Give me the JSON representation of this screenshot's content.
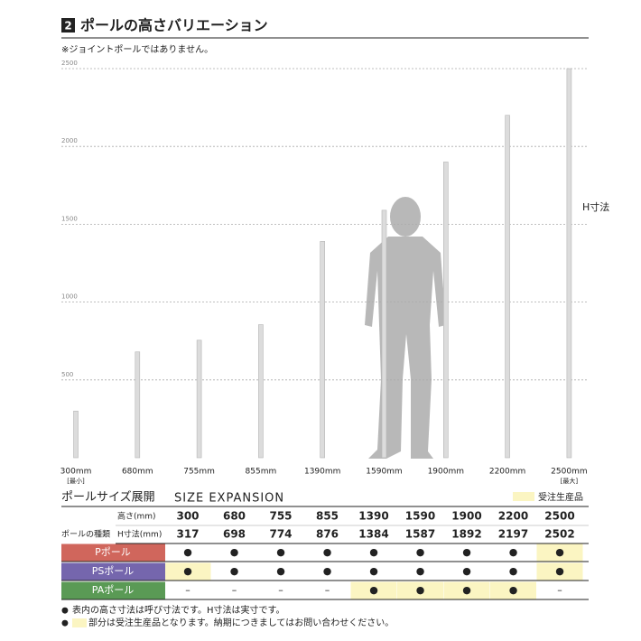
{
  "chart_data": {
    "type": "bar",
    "title_number": "2",
    "title": "ポールの高さバリエーション",
    "subtitle": "※ジョイントポールではありません。",
    "annotation": "H寸法",
    "categories": [
      "300mm",
      "680mm",
      "755mm",
      "855mm",
      "1390mm",
      "1590mm",
      "1900mm",
      "2200mm",
      "2500mm"
    ],
    "category_notes": [
      "[最小]",
      null,
      null,
      null,
      null,
      null,
      null,
      null,
      "[最大]"
    ],
    "values": [
      300,
      680,
      755,
      855,
      1390,
      1590,
      1900,
      2200,
      2500
    ],
    "color": "#dcdcdc",
    "ylim": [
      0,
      2500
    ],
    "yticks": [
      500,
      1000,
      1500,
      2000,
      2500
    ],
    "grid": true
  },
  "table": {
    "title": "ポールサイズ展開",
    "title_en": "SIZE EXPANSION",
    "legend": "受注生産品",
    "legend_color": "#fbf5c2",
    "rows": [
      {
        "label": "高さ(mm)",
        "cells": [
          "300",
          "680",
          "755",
          "855",
          "1390",
          "1590",
          "1900",
          "2200",
          "2500"
        ],
        "made_to_order": [
          false,
          false,
          false,
          false,
          false,
          false,
          false,
          false,
          false
        ]
      },
      {
        "group": "ポールの種類",
        "label": "H寸法(mm)",
        "cells": [
          "317",
          "698",
          "774",
          "876",
          "1384",
          "1587",
          "1892",
          "2197",
          "2502"
        ],
        "made_to_order": [
          false,
          false,
          false,
          false,
          false,
          false,
          false,
          false,
          false
        ]
      },
      {
        "label": "Pポール",
        "color": "#d0665c",
        "cells": [
          "●",
          "●",
          "●",
          "●",
          "●",
          "●",
          "●",
          "●",
          "●"
        ],
        "made_to_order": [
          false,
          false,
          false,
          false,
          false,
          false,
          false,
          false,
          true
        ]
      },
      {
        "label": "PSポール",
        "color": "#7566ad",
        "cells": [
          "●",
          "●",
          "●",
          "●",
          "●",
          "●",
          "●",
          "●",
          "●"
        ],
        "made_to_order": [
          true,
          false,
          false,
          false,
          false,
          false,
          false,
          false,
          true
        ]
      },
      {
        "label": "PAポール",
        "color": "#5a9a55",
        "cells": [
          "–",
          "–",
          "–",
          "–",
          "●",
          "●",
          "●",
          "●",
          "–"
        ],
        "made_to_order": [
          false,
          false,
          false,
          false,
          true,
          true,
          true,
          true,
          false
        ]
      }
    ]
  },
  "notes": [
    {
      "bullet": "●",
      "text": "表内の高さ寸法は呼び寸法です。H寸法は実寸です。"
    },
    {
      "bullet": "●",
      "text": "部分は受注生産品となります。納期につきましてはお問い合わせください。",
      "swatch": true
    }
  ]
}
